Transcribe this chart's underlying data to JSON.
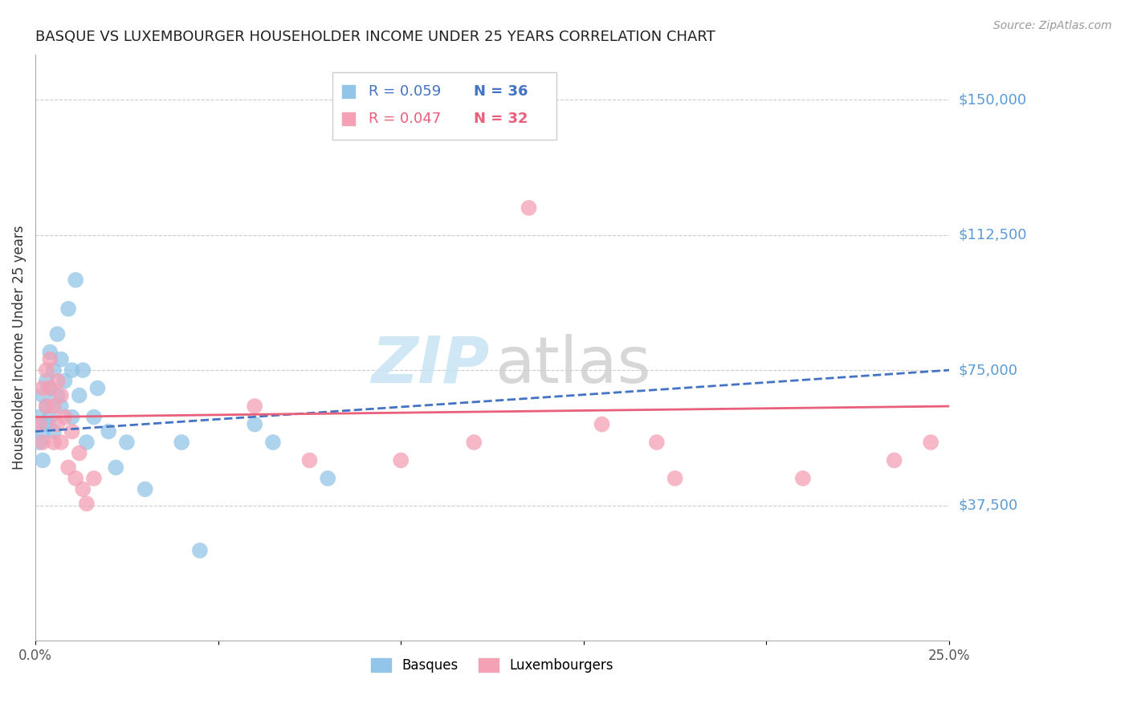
{
  "title": "BASQUE VS LUXEMBOURGER HOUSEHOLDER INCOME UNDER 25 YEARS CORRELATION CHART",
  "source": "Source: ZipAtlas.com",
  "ylabel": "Householder Income Under 25 years",
  "ytick_labels": [
    "$150,000",
    "$112,500",
    "$75,000",
    "$37,500"
  ],
  "ytick_values": [
    150000,
    112500,
    75000,
    37500
  ],
  "ymin": 0,
  "ymax": 162500,
  "xmin": 0.0,
  "xmax": 0.25,
  "legend_r_basque": "0.059",
  "legend_n_basque": "36",
  "legend_r_lux": "0.047",
  "legend_n_lux": "32",
  "color_basque": "#92c5e8",
  "color_lux": "#f4a0b5",
  "color_trend_basque": "#4472c4",
  "color_trend_lux": "#e8607a",
  "color_axis_labels": "#5b9bd5",
  "basque_x": [
    0.001,
    0.001,
    0.002,
    0.002,
    0.002,
    0.003,
    0.003,
    0.003,
    0.004,
    0.004,
    0.004,
    0.005,
    0.005,
    0.006,
    0.006,
    0.007,
    0.007,
    0.008,
    0.009,
    0.01,
    0.01,
    0.011,
    0.012,
    0.013,
    0.014,
    0.016,
    0.017,
    0.02,
    0.022,
    0.025,
    0.03,
    0.04,
    0.045,
    0.06,
    0.065,
    0.08
  ],
  "basque_y": [
    62000,
    55000,
    68000,
    58000,
    50000,
    72000,
    65000,
    60000,
    80000,
    70000,
    62000,
    75000,
    58000,
    85000,
    68000,
    78000,
    65000,
    72000,
    92000,
    75000,
    62000,
    100000,
    68000,
    75000,
    55000,
    62000,
    70000,
    58000,
    48000,
    55000,
    42000,
    55000,
    25000,
    60000,
    55000,
    45000
  ],
  "lux_x": [
    0.001,
    0.002,
    0.002,
    0.003,
    0.003,
    0.004,
    0.004,
    0.005,
    0.005,
    0.006,
    0.006,
    0.007,
    0.007,
    0.008,
    0.009,
    0.01,
    0.011,
    0.012,
    0.013,
    0.014,
    0.016,
    0.06,
    0.075,
    0.1,
    0.12,
    0.135,
    0.155,
    0.17,
    0.175,
    0.21,
    0.235,
    0.245
  ],
  "lux_y": [
    60000,
    70000,
    55000,
    75000,
    65000,
    78000,
    70000,
    65000,
    55000,
    72000,
    60000,
    68000,
    55000,
    62000,
    48000,
    58000,
    45000,
    52000,
    42000,
    38000,
    45000,
    65000,
    50000,
    50000,
    55000,
    120000,
    60000,
    55000,
    45000,
    45000,
    50000,
    55000
  ]
}
